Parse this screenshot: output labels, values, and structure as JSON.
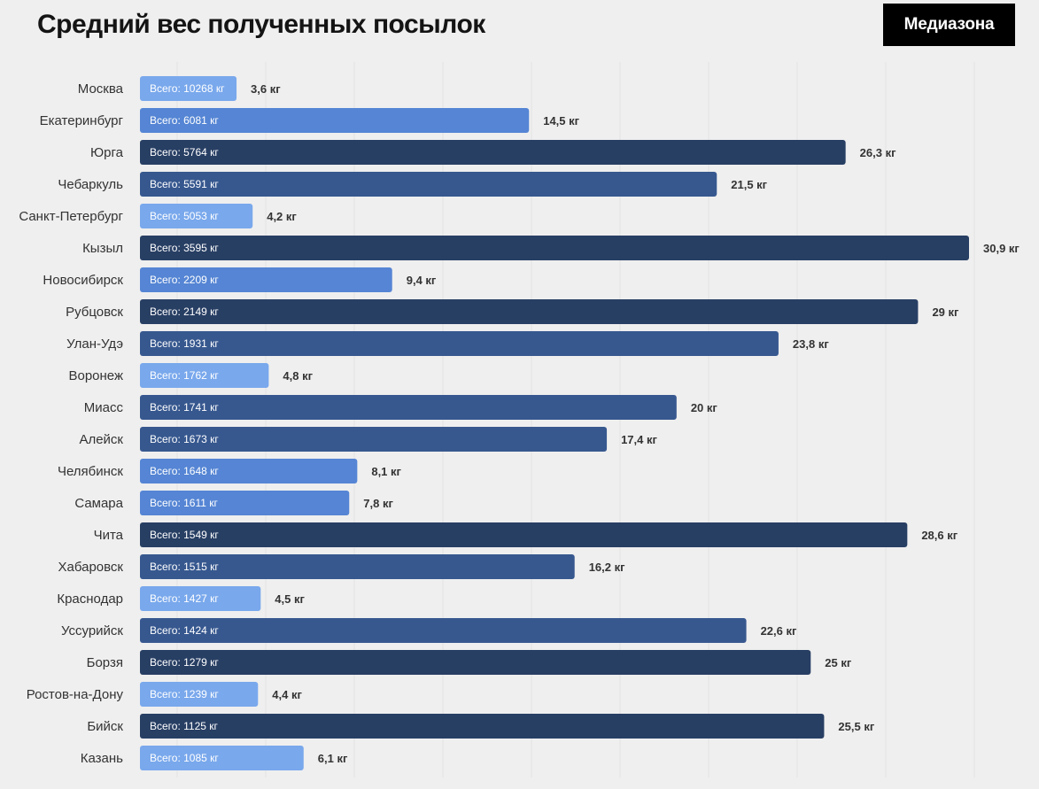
{
  "header": {
    "title": "Средний вес полученных посылок",
    "logo": "Медиазона"
  },
  "colors": {
    "light": "#79a8ec",
    "mid": "#5585d4",
    "dark": "#37588f",
    "darkest": "#283f64"
  },
  "chart_data": {
    "type": "bar",
    "orientation": "horizontal",
    "title": "Средний вес полученных посылок",
    "xlim": [
      0,
      30.9
    ],
    "grid": true,
    "categories": [
      "Москва",
      "Екатеринбург",
      "Юрга",
      "Чебаркуль",
      "Санкт-Петербург",
      "Кызыл",
      "Новосибирск",
      "Рубцовск",
      "Улан-Удэ",
      "Воронеж",
      "Миасс",
      "Алейск",
      "Челябинск",
      "Самара",
      "Чита",
      "Хабаровск",
      "Краснодар",
      "Уссурийск",
      "Борзя",
      "Ростов-на-Дону",
      "Бийск",
      "Казань"
    ],
    "values": [
      3.6,
      14.5,
      26.3,
      21.5,
      4.2,
      30.9,
      9.4,
      29,
      23.8,
      4.8,
      20,
      17.4,
      8.1,
      7.8,
      28.6,
      16.2,
      4.5,
      22.6,
      25,
      4.4,
      25.5,
      6.1
    ],
    "value_labels": [
      "3,6 кг",
      "14,5 кг",
      "26,3 кг",
      "21,5 кг",
      "4,2 кг",
      "30,9 кг",
      "9,4 кг",
      "29 кг",
      "23,8 кг",
      "4,8 кг",
      "20 кг",
      "17,4 кг",
      "8,1 кг",
      "7,8 кг",
      "28,6 кг",
      "16,2 кг",
      "4,5 кг",
      "22,6 кг",
      "25 кг",
      "4,4 кг",
      "25,5 кг",
      "6,1 кг"
    ],
    "totals": [
      "Всего: 10268 кг",
      "Всего: 6081 кг",
      "Всего: 5764 кг",
      "Всего: 5591 кг",
      "Всего: 5053 кг",
      "Всего: 3595 кг",
      "Всего: 2209 кг",
      "Всего: 2149 кг",
      "Всего: 1931 кг",
      "Всего: 1762 кг",
      "Всего: 1741 кг",
      "Всего: 1673 кг",
      "Всего: 1648 кг",
      "Всего: 1611 кг",
      "Всего: 1549 кг",
      "Всего: 1515 кг",
      "Всего: 1427 кг",
      "Всего: 1424 кг",
      "Всего: 1279 кг",
      "Всего: 1239 кг",
      "Всего: 1125 кг",
      "Всего: 1085 кг"
    ]
  }
}
